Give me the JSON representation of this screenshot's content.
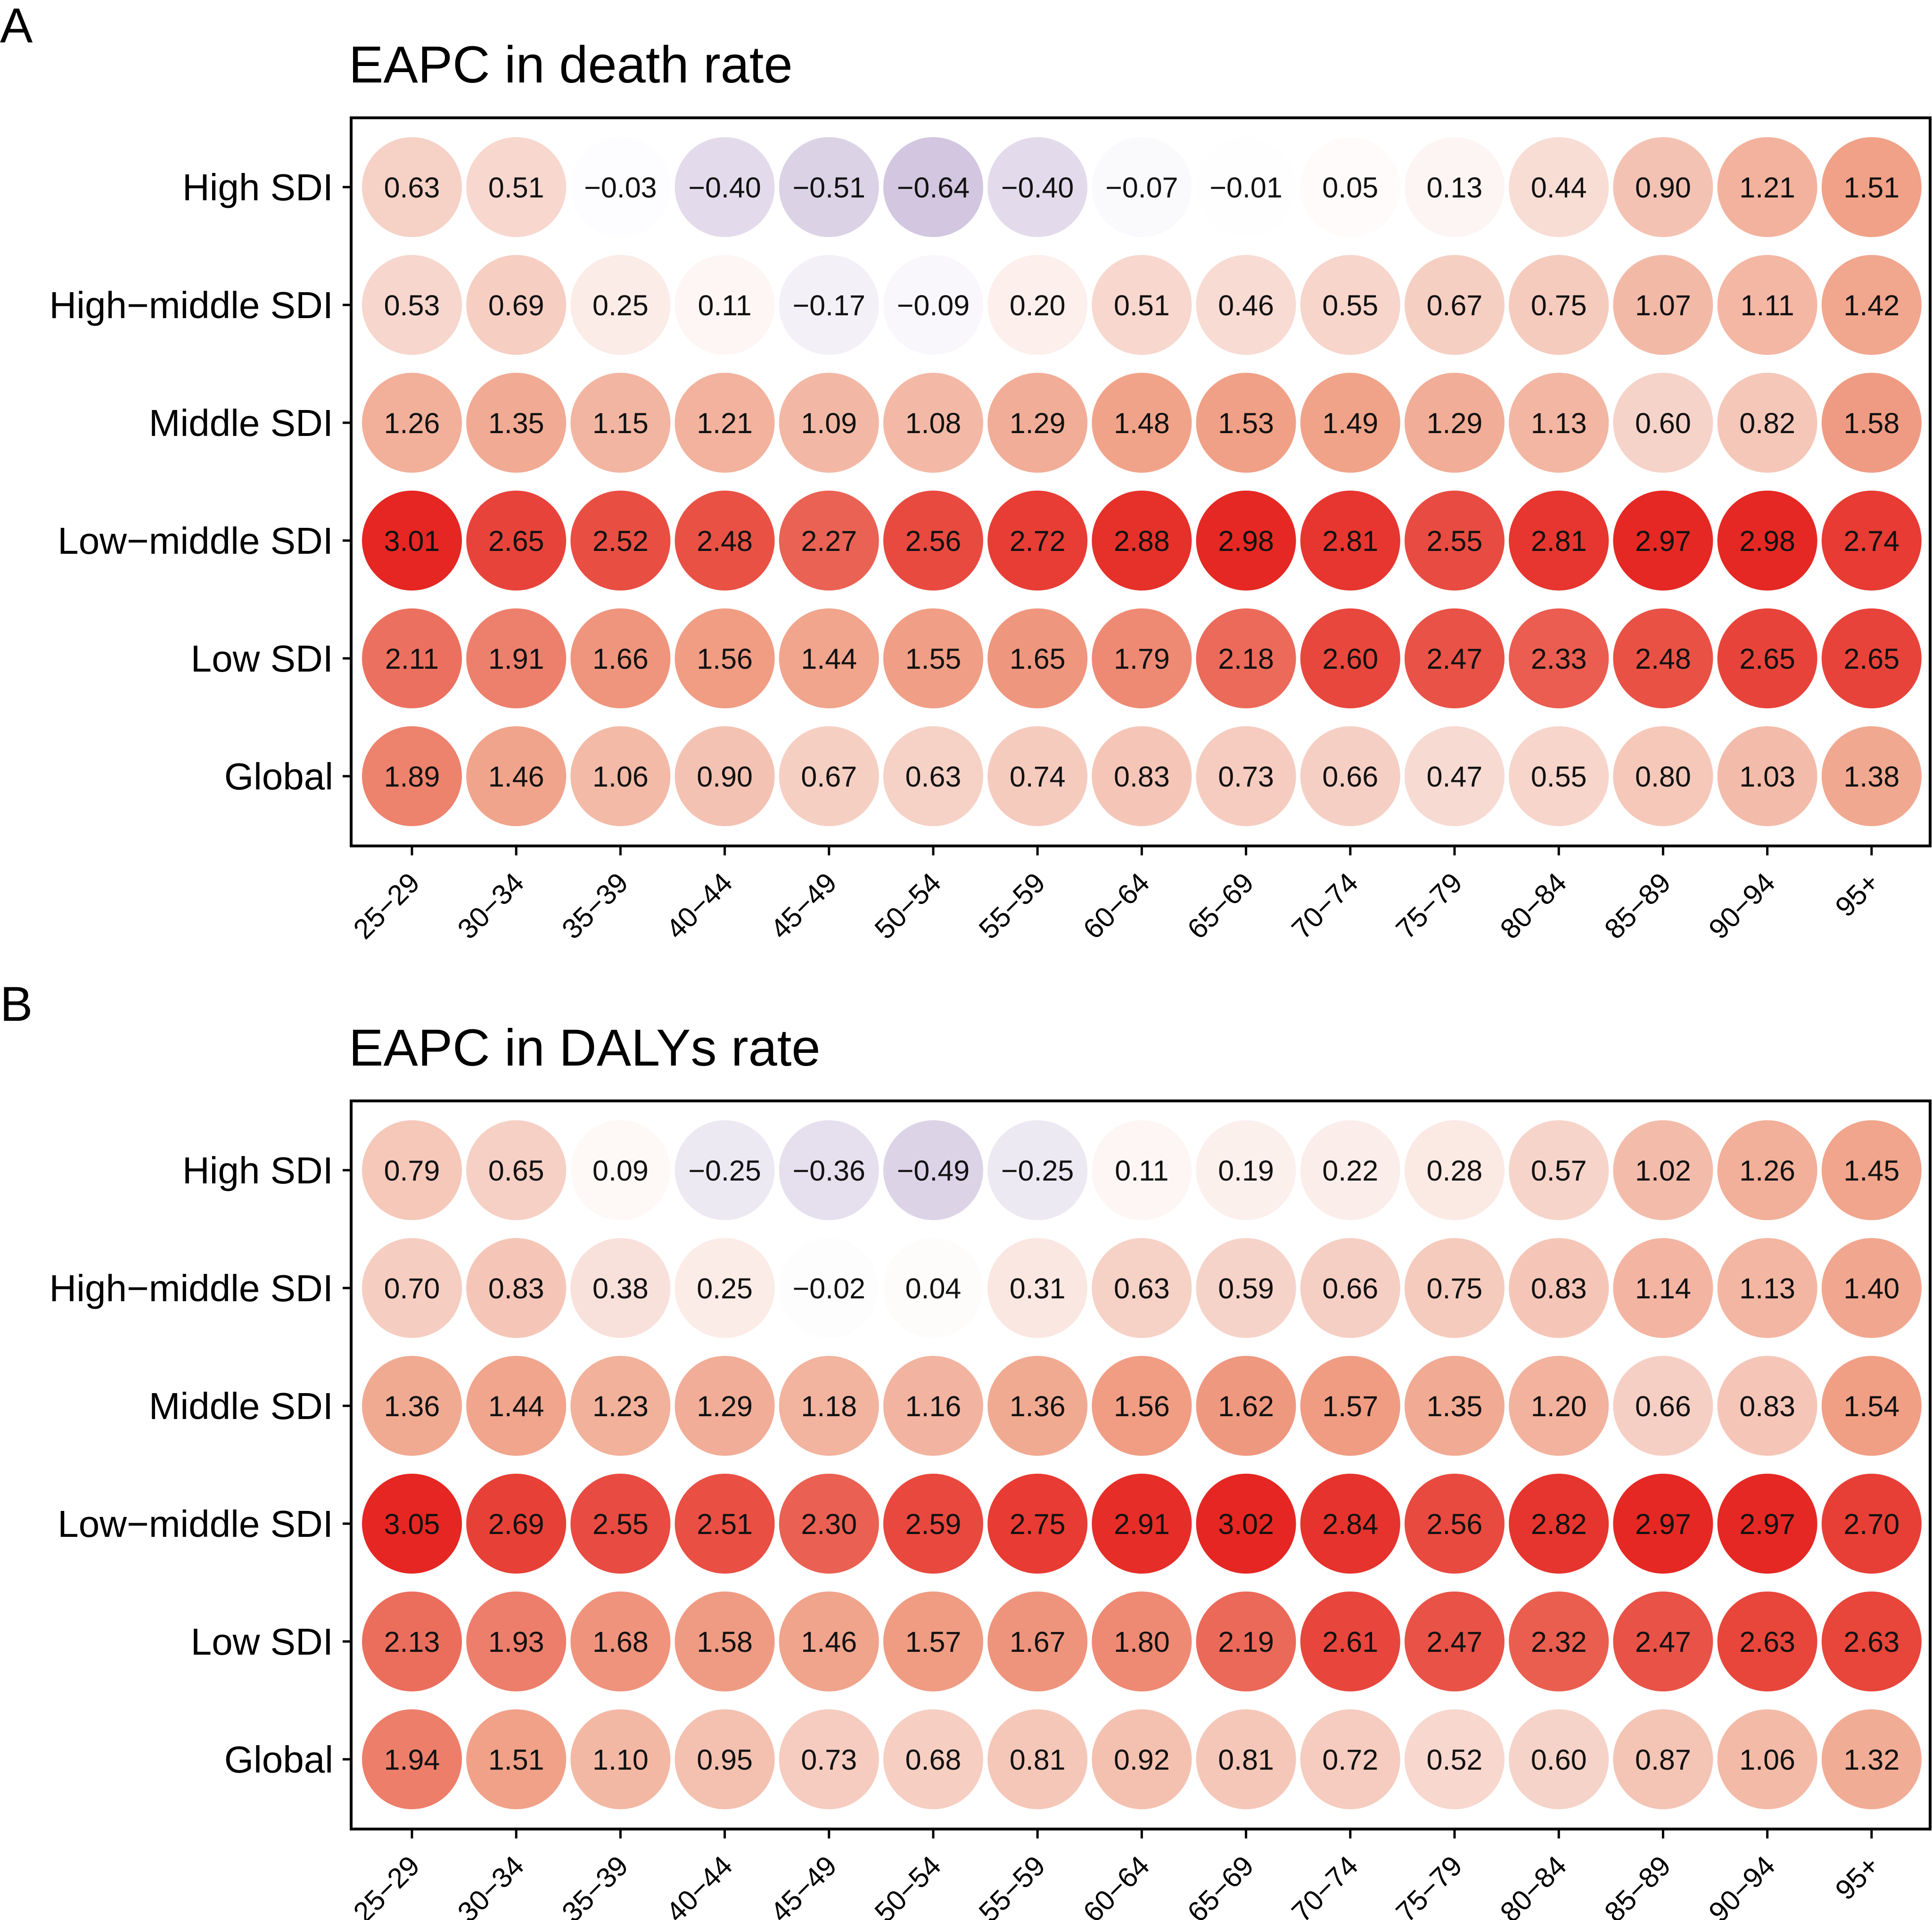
{
  "chart_data": [
    {
      "type": "heatmap",
      "panel": "A",
      "title": "EAPC in death rate",
      "xlabel": "",
      "ylabel": "",
      "categories": [
        "25−29",
        "30−34",
        "35−39",
        "40−44",
        "45−49",
        "50−54",
        "55−59",
        "60−64",
        "65−69",
        "70−74",
        "75−79",
        "80−84",
        "85−89",
        "90−94",
        "95+"
      ],
      "rows": [
        "High SDI",
        "High−middle SDI",
        "Middle SDI",
        "Low−middle SDI",
        "Low SDI",
        "Global"
      ],
      "series": [
        {
          "name": "High SDI",
          "values": [
            0.63,
            0.51,
            -0.03,
            -0.4,
            -0.51,
            -0.64,
            -0.4,
            -0.07,
            -0.01,
            0.05,
            0.13,
            0.44,
            0.9,
            1.21,
            1.51
          ],
          "labels": [
            "0.63",
            "0.51",
            "−0.03",
            "−0.40",
            "−0.51",
            "−0.64",
            "−0.40",
            "−0.07",
            "−0.01",
            "0.05",
            "0.13",
            "0.44",
            "0.90",
            "1.21",
            "1.51"
          ]
        },
        {
          "name": "High−middle SDI",
          "values": [
            0.53,
            0.69,
            0.25,
            0.11,
            -0.17,
            -0.09,
            0.2,
            0.51,
            0.46,
            0.55,
            0.67,
            0.75,
            1.07,
            1.11,
            1.42
          ],
          "labels": [
            "0.53",
            "0.69",
            "0.25",
            "0.11",
            "−0.17",
            "−0.09",
            "0.20",
            "0.51",
            "0.46",
            "0.55",
            "0.67",
            "0.75",
            "1.07",
            "1.11",
            "1.42"
          ]
        },
        {
          "name": "Middle SDI",
          "values": [
            1.26,
            1.35,
            1.15,
            1.21,
            1.09,
            1.08,
            1.29,
            1.48,
            1.53,
            1.49,
            1.29,
            1.13,
            0.6,
            0.82,
            1.58
          ],
          "labels": [
            "1.26",
            "1.35",
            "1.15",
            "1.21",
            "1.09",
            "1.08",
            "1.29",
            "1.48",
            "1.53",
            "1.49",
            "1.29",
            "1.13",
            "0.60",
            "0.82",
            "1.58"
          ]
        },
        {
          "name": "Low−middle SDI",
          "values": [
            3.01,
            2.65,
            2.52,
            2.48,
            2.27,
            2.56,
            2.72,
            2.88,
            2.98,
            2.81,
            2.55,
            2.81,
            2.97,
            2.98,
            2.74
          ],
          "labels": [
            "3.01",
            "2.65",
            "2.52",
            "2.48",
            "2.27",
            "2.56",
            "2.72",
            "2.88",
            "2.98",
            "2.81",
            "2.55",
            "2.81",
            "2.97",
            "2.98",
            "2.74"
          ]
        },
        {
          "name": "Low SDI",
          "values": [
            2.11,
            1.91,
            1.66,
            1.56,
            1.44,
            1.55,
            1.65,
            1.79,
            2.18,
            2.6,
            2.47,
            2.33,
            2.48,
            2.65,
            2.65
          ],
          "labels": [
            "2.11",
            "1.91",
            "1.66",
            "1.56",
            "1.44",
            "1.55",
            "1.65",
            "1.79",
            "2.18",
            "2.60",
            "2.47",
            "2.33",
            "2.48",
            "2.65",
            "2.65"
          ]
        },
        {
          "name": "Global",
          "values": [
            1.89,
            1.46,
            1.06,
            0.9,
            0.67,
            0.63,
            0.74,
            0.83,
            0.73,
            0.66,
            0.47,
            0.55,
            0.8,
            1.03,
            1.38
          ],
          "labels": [
            "1.89",
            "1.46",
            "1.06",
            "0.90",
            "0.67",
            "0.63",
            "0.74",
            "0.83",
            "0.73",
            "0.66",
            "0.47",
            "0.55",
            "0.80",
            "1.03",
            "1.38"
          ]
        }
      ]
    },
    {
      "type": "heatmap",
      "panel": "B",
      "title": "EAPC in DALYs rate",
      "xlabel": "",
      "ylabel": "",
      "categories": [
        "25−29",
        "30−34",
        "35−39",
        "40−44",
        "45−49",
        "50−54",
        "55−59",
        "60−64",
        "65−69",
        "70−74",
        "75−79",
        "80−84",
        "85−89",
        "90−94",
        "95+"
      ],
      "rows": [
        "High SDI",
        "High−middle SDI",
        "Middle SDI",
        "Low−middle SDI",
        "Low SDI",
        "Global"
      ],
      "series": [
        {
          "name": "High SDI",
          "values": [
            0.79,
            0.65,
            0.09,
            -0.25,
            -0.36,
            -0.49,
            -0.25,
            0.11,
            0.19,
            0.22,
            0.28,
            0.57,
            1.02,
            1.26,
            1.45
          ],
          "labels": [
            "0.79",
            "0.65",
            "0.09",
            "−0.25",
            "−0.36",
            "−0.49",
            "−0.25",
            "0.11",
            "0.19",
            "0.22",
            "0.28",
            "0.57",
            "1.02",
            "1.26",
            "1.45"
          ]
        },
        {
          "name": "High−middle SDI",
          "values": [
            0.7,
            0.83,
            0.38,
            0.25,
            -0.02,
            0.04,
            0.31,
            0.63,
            0.59,
            0.66,
            0.75,
            0.83,
            1.14,
            1.13,
            1.4
          ],
          "labels": [
            "0.70",
            "0.83",
            "0.38",
            "0.25",
            "−0.02",
            "0.04",
            "0.31",
            "0.63",
            "0.59",
            "0.66",
            "0.75",
            "0.83",
            "1.14",
            "1.13",
            "1.40"
          ]
        },
        {
          "name": "Middle SDI",
          "values": [
            1.36,
            1.44,
            1.23,
            1.29,
            1.18,
            1.16,
            1.36,
            1.56,
            1.62,
            1.57,
            1.35,
            1.2,
            0.66,
            0.83,
            1.54
          ],
          "labels": [
            "1.36",
            "1.44",
            "1.23",
            "1.29",
            "1.18",
            "1.16",
            "1.36",
            "1.56",
            "1.62",
            "1.57",
            "1.35",
            "1.20",
            "0.66",
            "0.83",
            "1.54"
          ]
        },
        {
          "name": "Low−middle SDI",
          "values": [
            3.05,
            2.69,
            2.55,
            2.51,
            2.3,
            2.59,
            2.75,
            2.91,
            3.02,
            2.84,
            2.56,
            2.82,
            2.97,
            2.97,
            2.7
          ],
          "labels": [
            "3.05",
            "2.69",
            "2.55",
            "2.51",
            "2.30",
            "2.59",
            "2.75",
            "2.91",
            "3.02",
            "2.84",
            "2.56",
            "2.82",
            "2.97",
            "2.97",
            "2.70"
          ]
        },
        {
          "name": "Low SDI",
          "values": [
            2.13,
            1.93,
            1.68,
            1.58,
            1.46,
            1.57,
            1.67,
            1.8,
            2.19,
            2.61,
            2.47,
            2.32,
            2.47,
            2.63,
            2.63
          ],
          "labels": [
            "2.13",
            "1.93",
            "1.68",
            "1.58",
            "1.46",
            "1.57",
            "1.67",
            "1.80",
            "2.19",
            "2.61",
            "2.47",
            "2.32",
            "2.47",
            "2.63",
            "2.63"
          ]
        },
        {
          "name": "Global",
          "values": [
            1.94,
            1.51,
            1.1,
            0.95,
            0.73,
            0.68,
            0.81,
            0.92,
            0.81,
            0.72,
            0.52,
            0.6,
            0.87,
            1.06,
            1.32
          ],
          "labels": [
            "1.94",
            "1.51",
            "1.10",
            "0.95",
            "0.73",
            "0.68",
            "0.81",
            "0.92",
            "0.81",
            "0.72",
            "0.52",
            "0.60",
            "0.87",
            "1.06",
            "1.32"
          ]
        }
      ]
    }
  ],
  "colors": {
    "negative_max": "#d2c6e0",
    "neutral": "#ffffff",
    "low_positive": "#f7d8cf",
    "mid_positive": "#f0a288",
    "high_positive": "#e52622",
    "frame": "#000000"
  }
}
